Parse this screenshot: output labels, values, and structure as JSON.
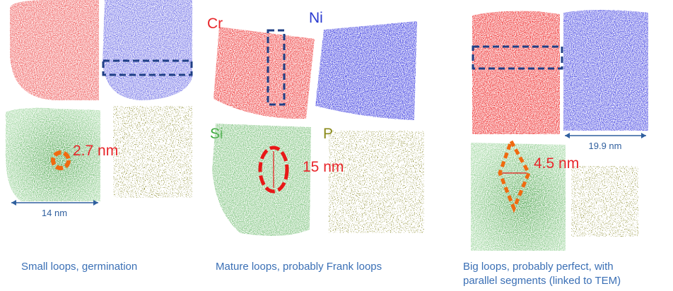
{
  "panels": [
    {
      "caption": "Small loops, germination",
      "size_label": "2.7 nm",
      "scale_label": "14 nm"
    },
    {
      "caption": "Mature loops, probably Frank loops",
      "element_labels": [
        "Cr",
        "Ni",
        "Si",
        "P"
      ],
      "size_label": "15 nm"
    },
    {
      "caption_lines": [
        "Big loops, probably perfect, with",
        "parallel segments (linked to TEM)"
      ],
      "size_label": "4.5 nm",
      "scale_label": "19.9 nm"
    }
  ]
}
